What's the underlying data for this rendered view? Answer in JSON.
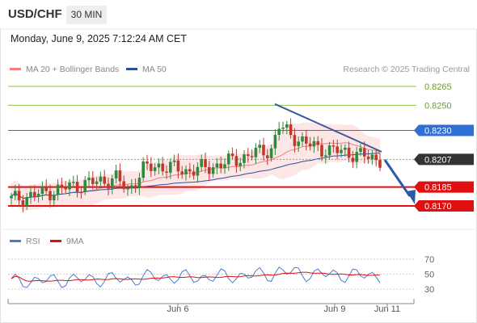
{
  "header": {
    "symbol": "USD/CHF",
    "timeframe": "30 MIN",
    "datetime": "Monday, June 9, 2025 7:12:24 AM CET"
  },
  "legend": {
    "ma20_label": "MA 20 + Bollinger Bands",
    "ma50_label": "MA 50",
    "credit": "Research © 2025 Trading Central"
  },
  "rsi_legend": {
    "rsi_label": "RSI",
    "ma_label": "9MA"
  },
  "colors": {
    "candle_up": "#2e8b3e",
    "candle_down": "#c0392b",
    "ma20": "#f08080",
    "bollinger_fill": "#fde2e2",
    "ma50": "#2c4f9c",
    "resistance_green": "#8bc34a",
    "level_blue": "#2f6fd6",
    "support_red": "#e01010",
    "rsi_line": "#4a7bd0",
    "rsi_ma": "#e01010",
    "arrow": "#2a5aa8"
  },
  "chart_data": [
    {
      "type": "candlestick",
      "title": "USD/CHF",
      "timeframe": "30 MIN",
      "x_labels": [
        "Jun 6",
        "Jun 9",
        "Jun 11"
      ],
      "ylim": [
        0.8163,
        0.8272
      ],
      "price_levels": [
        {
          "value": 0.8265,
          "label": "0.8265",
          "role": "resistance",
          "color": "#8bc34a",
          "tag": false
        },
        {
          "value": 0.825,
          "label": "0.8250",
          "role": "resistance",
          "color": "#8bc34a",
          "tag": false
        },
        {
          "value": 0.823,
          "label": "0.8230",
          "role": "pivot",
          "color": "#2f6fd6",
          "tag": true
        },
        {
          "value": 0.8207,
          "label": "0.8207",
          "role": "last",
          "color": "#333333",
          "tag": true
        },
        {
          "value": 0.8185,
          "label": "0.8185",
          "role": "support",
          "color": "#e01010",
          "tag": true
        },
        {
          "value": 0.817,
          "label": "0.8170",
          "role": "support",
          "color": "#e01010",
          "tag": true
        }
      ],
      "series": [
        {
          "name": "MA 20 + Bollinger Bands",
          "values": []
        },
        {
          "name": "MA 50",
          "values": []
        }
      ],
      "annotations": {
        "trendline": {
          "from": [
            0.8251
          ],
          "to": [
            0.8213
          ]
        },
        "arrow": {
          "direction": "down",
          "target": 0.817
        }
      }
    },
    {
      "type": "line",
      "series": [
        {
          "name": "RSI"
        },
        {
          "name": "9MA"
        }
      ],
      "ylim": [
        25,
        75
      ],
      "yticks": [
        "70",
        "50",
        "30"
      ],
      "x_labels": [
        "Jun 6",
        "Jun 9",
        "Jun 11"
      ]
    }
  ]
}
